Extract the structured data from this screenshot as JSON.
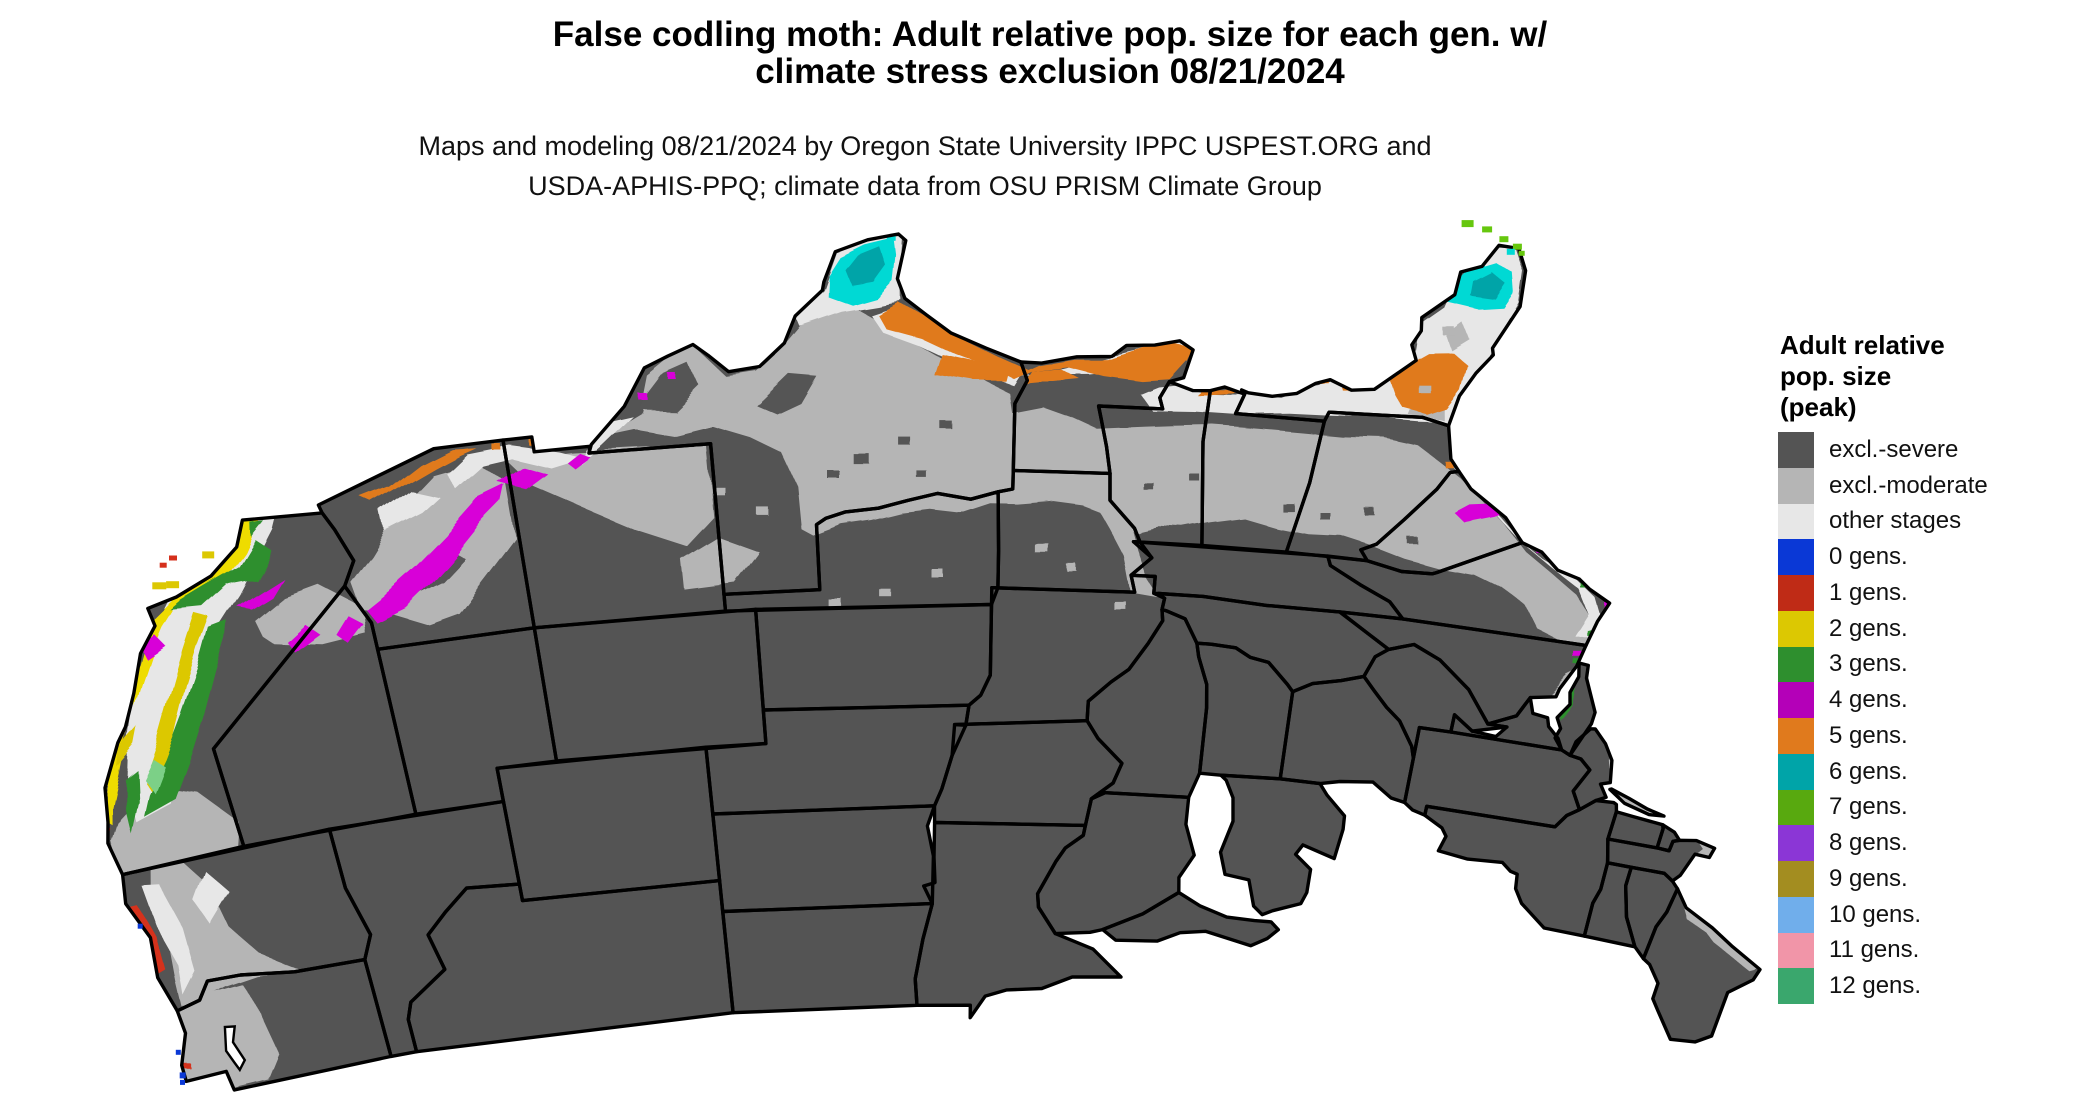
{
  "title": {
    "line1": "False codling moth: Adult relative pop. size for each gen. w/",
    "line2": "climate stress exclusion 08/21/2024"
  },
  "subtitle": {
    "line1": "Maps and modeling 08/21/2024 by Oregon State University IPPC USPEST.ORG and",
    "line2": "USDA-APHIS-PPQ; climate data from OSU PRISM Climate Group"
  },
  "legend": {
    "title_line1": "Adult relative",
    "title_line2": "pop. size",
    "title_line3": "(peak)",
    "items": [
      {
        "label": "excl.-severe",
        "color_key": "severe"
      },
      {
        "label": "excl.-moderate",
        "color_key": "moderate"
      },
      {
        "label": "other stages",
        "color_key": "other"
      },
      {
        "label": "0 gens.",
        "color_key": "g0"
      },
      {
        "label": "1 gens.",
        "color_key": "g1"
      },
      {
        "label": "2 gens.",
        "color_key": "g2"
      },
      {
        "label": "3 gens.",
        "color_key": "g3"
      },
      {
        "label": "4 gens.",
        "color_key": "g4"
      },
      {
        "label": "5 gens.",
        "color_key": "g5"
      },
      {
        "label": "6 gens.",
        "color_key": "g6"
      },
      {
        "label": "7 gens.",
        "color_key": "g7"
      },
      {
        "label": "8 gens.",
        "color_key": "g8"
      },
      {
        "label": "9 gens.",
        "color_key": "g9"
      },
      {
        "label": "10 gens.",
        "color_key": "g10"
      },
      {
        "label": "11 gens.",
        "color_key": "g11"
      },
      {
        "label": "12 gens.",
        "color_key": "g12"
      }
    ]
  },
  "colors": {
    "severe": "#545454",
    "moderate": "#b5b5b5",
    "other": "#e7e7e7",
    "g0": "#0a38d6",
    "g1": "#bf2b16",
    "g1b": "#d5301c",
    "g2": "#dcc802",
    "g2b": "#eedc00",
    "g3": "#2e8f2e",
    "g3l": "#7cd087",
    "g4": "#b400b8",
    "g4b": "#d801d8",
    "g5": "#e07a1d",
    "g6": "#00a4a8",
    "g6b": "#00d9d4",
    "g7": "#58a90f",
    "g7b": "#66c70e",
    "g8": "#8b36d6",
    "g9": "#a38d20",
    "g10": "#70aeeb",
    "g11": "#f195a8",
    "g12": "#3aa76d",
    "water": "#ffffff",
    "state_border": "#000000"
  }
}
